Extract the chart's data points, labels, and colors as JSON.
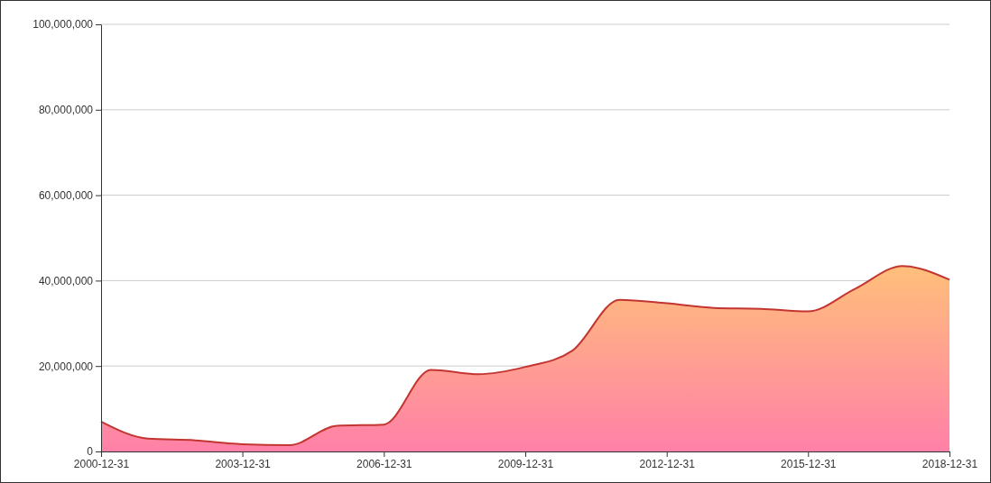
{
  "chart_data": {
    "type": "area",
    "x": [
      "2000-12-31",
      "2001-12-31",
      "2002-12-31",
      "2003-12-31",
      "2004-12-31",
      "2005-12-31",
      "2006-12-31",
      "2007-12-31",
      "2008-12-31",
      "2009-12-31",
      "2010-12-31",
      "2011-12-31",
      "2012-12-31",
      "2013-12-31",
      "2014-12-31",
      "2015-12-31",
      "2016-12-31",
      "2017-12-31",
      "2018-12-31"
    ],
    "series": [
      {
        "color": "#c23531",
        "values": [
          7000000,
          3000000,
          2600000,
          1700000,
          1500000,
          6000000,
          6300000,
          19100000,
          18100000,
          19800000,
          23600000,
          35500000,
          34700000,
          33600000,
          33400000,
          32800000,
          38100000,
          43400000,
          40200000
        ]
      }
    ],
    "xlim": [
      "2000-12-31",
      "2018-12-31"
    ],
    "xticks": [
      "2000-12-31",
      "2003-12-31",
      "2006-12-31",
      "2009-12-31",
      "2012-12-31",
      "2015-12-31",
      "2018-12-31"
    ],
    "ylim": [
      0,
      100000000
    ],
    "yticks": [
      {
        "value": 0,
        "label": "0"
      },
      {
        "value": 20000000,
        "label": "20,000,000"
      },
      {
        "value": 40000000,
        "label": "40,000,000"
      },
      {
        "value": 60000000,
        "label": "60,000,000"
      },
      {
        "value": 80000000,
        "label": "80,000,000"
      },
      {
        "value": 100000000,
        "label": "100,000,000"
      }
    ],
    "grid": "y",
    "marker": "none",
    "line_style": "solid"
  }
}
